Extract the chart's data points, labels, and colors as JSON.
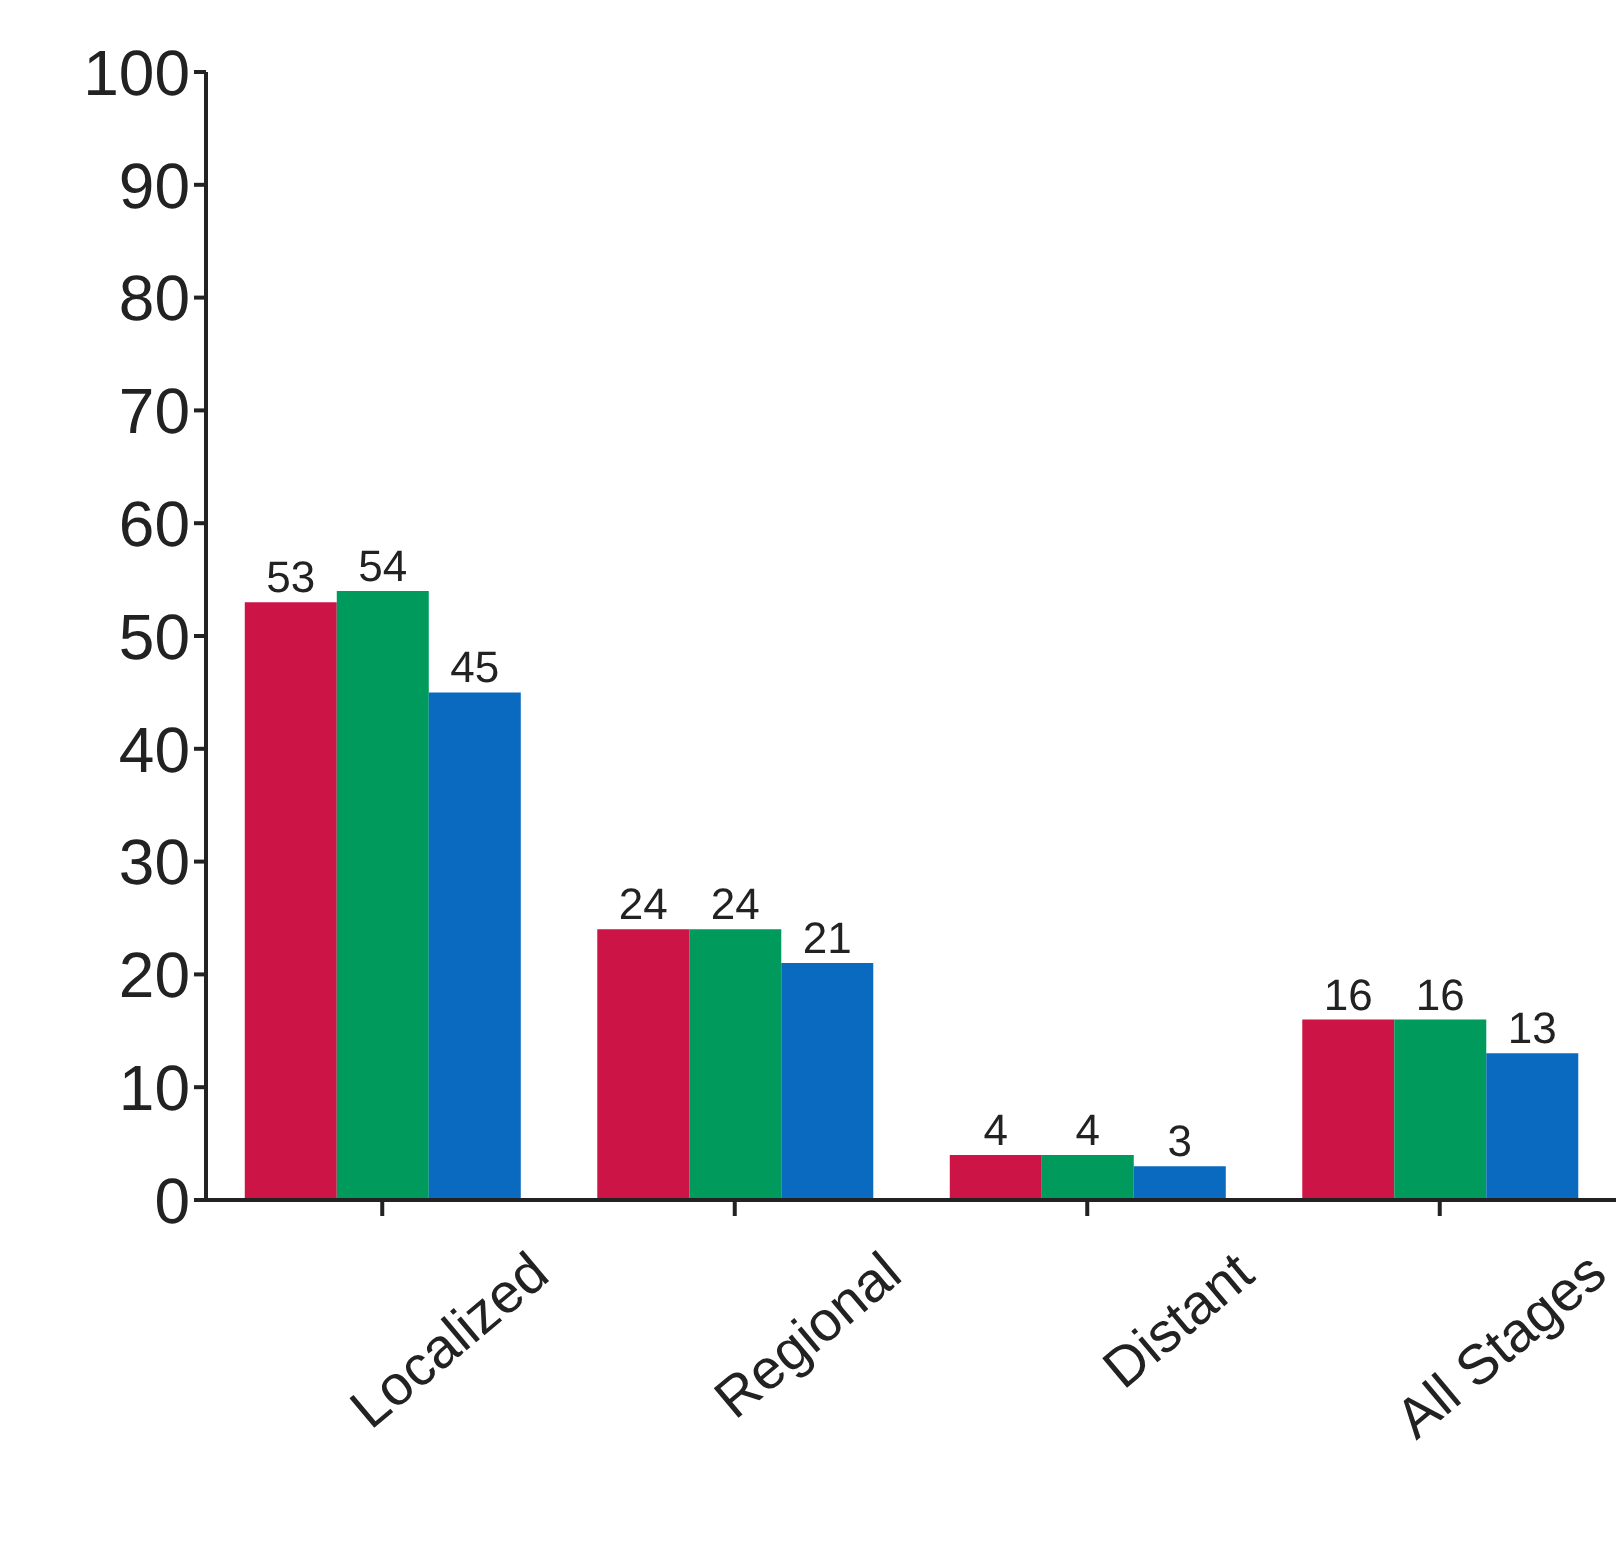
{
  "chart_data": {
    "type": "bar",
    "categories": [
      "Localized",
      "Regional",
      "Distant",
      "All Stages"
    ],
    "series": [
      {
        "color": "#cc1446",
        "values": [
          53,
          24,
          4,
          16
        ]
      },
      {
        "color": "#009a5c",
        "values": [
          54,
          24,
          4,
          16
        ]
      },
      {
        "color": "#0a6abf",
        "values": [
          45,
          21,
          3,
          13
        ]
      }
    ],
    "ylim": [
      0,
      100
    ],
    "yticks": [
      0,
      10,
      20,
      30,
      40,
      50,
      60,
      70,
      80,
      90,
      100
    ],
    "data_labels": true,
    "grid": false,
    "legend": false
  }
}
